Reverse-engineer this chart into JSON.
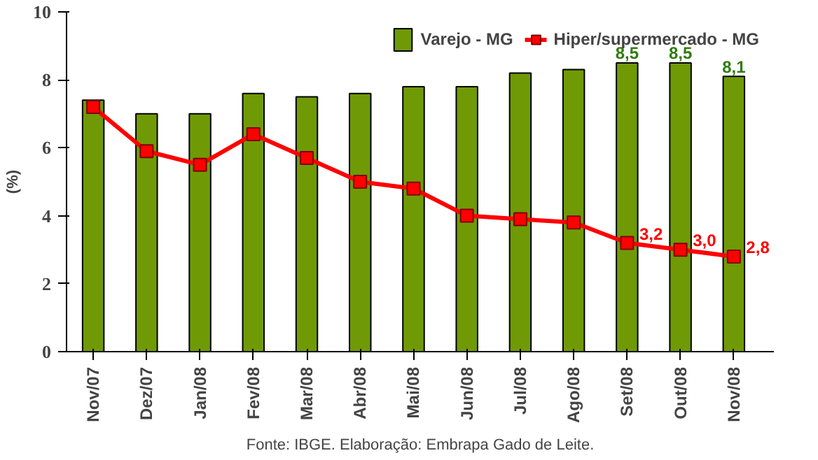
{
  "chart_data": {
    "type": "bar",
    "ylabel": "(%)",
    "categories": [
      "Nov/07",
      "Dez/07",
      "Jan/08",
      "Fev/08",
      "Mar/08",
      "Abr/08",
      "Mai/08",
      "Jun/08",
      "Jul/08",
      "Ago/08",
      "Set/08",
      "Out/08",
      "Nov/08"
    ],
    "series": [
      {
        "name": "Varejo - MG",
        "color": "#6f9a05",
        "values": [
          7.4,
          7.0,
          7.0,
          7.6,
          7.5,
          7.6,
          7.8,
          7.8,
          8.2,
          8.3,
          8.5,
          8.5,
          8.1
        ],
        "value_labels": [
          null,
          null,
          null,
          null,
          null,
          null,
          null,
          null,
          null,
          null,
          "8,5",
          "8,5",
          "8,1"
        ]
      },
      {
        "name": "Hiper/supermercado - MG",
        "type": "line",
        "color": "#ff0000",
        "marker": "square",
        "values": [
          7.2,
          5.9,
          5.5,
          6.4,
          5.7,
          5.0,
          4.8,
          4.0,
          3.9,
          3.8,
          3.2,
          3.0,
          2.8
        ],
        "value_labels": [
          null,
          null,
          null,
          null,
          null,
          null,
          null,
          null,
          null,
          null,
          "3,2",
          "3,0",
          "2,8"
        ]
      }
    ],
    "ylim": [
      0,
      10
    ],
    "yticks": [
      0,
      2,
      4,
      6,
      8,
      10
    ],
    "grid": false,
    "legend": "top right",
    "annotations": [
      "Fonte: IBGE. Elaboração: Embrapa Gado de Leite."
    ]
  }
}
